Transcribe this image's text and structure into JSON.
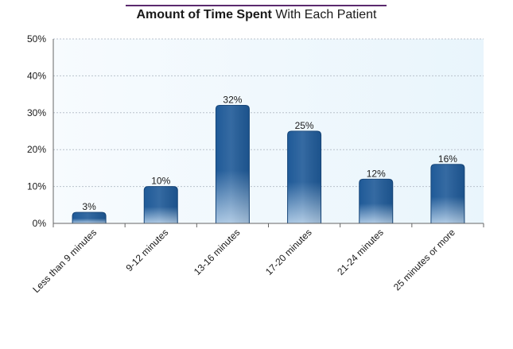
{
  "chart_data": {
    "type": "bar",
    "title_bold": "Amount of Time Spent",
    "title_rest": "With Each Patient",
    "categories": [
      "Less than 9 minutes",
      "9-12 minutes",
      "13-16 minutes",
      "17-20 minutes",
      "21-24 minutes",
      "25 minutes or more"
    ],
    "values": [
      3,
      10,
      32,
      25,
      12,
      16
    ],
    "data_labels": [
      "3%",
      "10%",
      "32%",
      "25%",
      "12%",
      "16%"
    ],
    "y_ticks": [
      0,
      10,
      20,
      30,
      40,
      50
    ],
    "y_tick_labels": [
      "0%",
      "10%",
      "20%",
      "30%",
      "40%",
      "50%"
    ],
    "ylim": [
      0,
      50
    ],
    "xlabel": "",
    "ylabel": "",
    "grid": true,
    "legend": "none",
    "colors": {
      "bar_top": "#1f5a98",
      "bar_bottom": "#a9c6e2",
      "bar_border": "#16467a",
      "plot_bg_left": "#f7fbfe",
      "plot_bg_right": "#e9f5fc",
      "grid": "#b9c2cc",
      "axis": "#666666",
      "title_rule": "#5b2a6e"
    }
  }
}
